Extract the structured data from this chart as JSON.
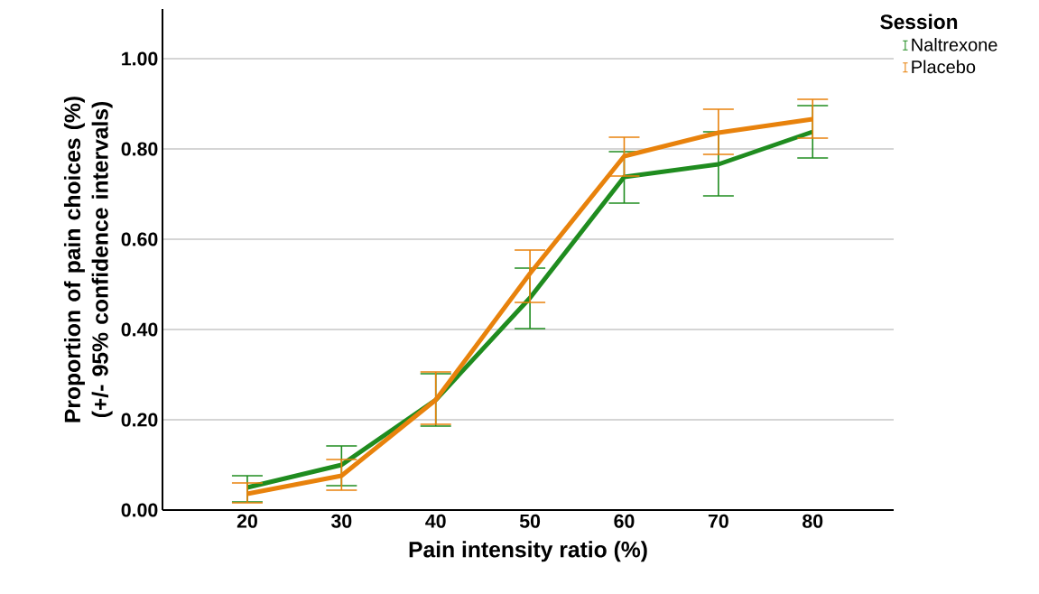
{
  "chart_data": {
    "type": "line",
    "xlabel": "Pain intensity ratio (%)",
    "ylabel": "Proportion of pain choices (%) (+/- 95% confidence intervals)",
    "legend_title": "Session",
    "categories": [
      "20",
      "30",
      "40",
      "50",
      "60",
      "70",
      "80"
    ],
    "series": [
      {
        "name": "Naltrexone",
        "color": "#1f8c1f",
        "values": [
          0.05,
          0.1,
          0.244,
          0.47,
          0.738,
          0.766,
          0.838
        ],
        "errors": [
          [
            0.018,
            0.076
          ],
          [
            0.054,
            0.142
          ],
          [
            0.186,
            0.302
          ],
          [
            0.402,
            0.536
          ],
          [
            0.68,
            0.794
          ],
          [
            0.696,
            0.838
          ],
          [
            0.78,
            0.896
          ]
        ]
      },
      {
        "name": "Placebo",
        "color": "#e8820c",
        "values": [
          0.036,
          0.076,
          0.244,
          0.524,
          0.784,
          0.836,
          0.866
        ],
        "errors": [
          [
            0.016,
            0.06
          ],
          [
            0.044,
            0.112
          ],
          [
            0.19,
            0.306
          ],
          [
            0.46,
            0.576
          ],
          [
            0.74,
            0.826
          ],
          [
            0.788,
            0.888
          ],
          [
            0.824,
            0.91
          ]
        ]
      }
    ],
    "ylim": [
      0,
      1.11
    ],
    "yticks": [
      {
        "value": 0,
        "label": "0.00"
      },
      {
        "value": 0.2,
        "label": "0.20"
      },
      {
        "value": 0.4,
        "label": "0.40"
      },
      {
        "value": 0.6,
        "label": "0.60"
      },
      {
        "value": 0.8,
        "label": "0.80"
      },
      {
        "value": 1.0,
        "label": "1.00"
      }
    ],
    "grid": "y",
    "legend": "top right",
    "marker": "none",
    "line_style": "solid"
  }
}
